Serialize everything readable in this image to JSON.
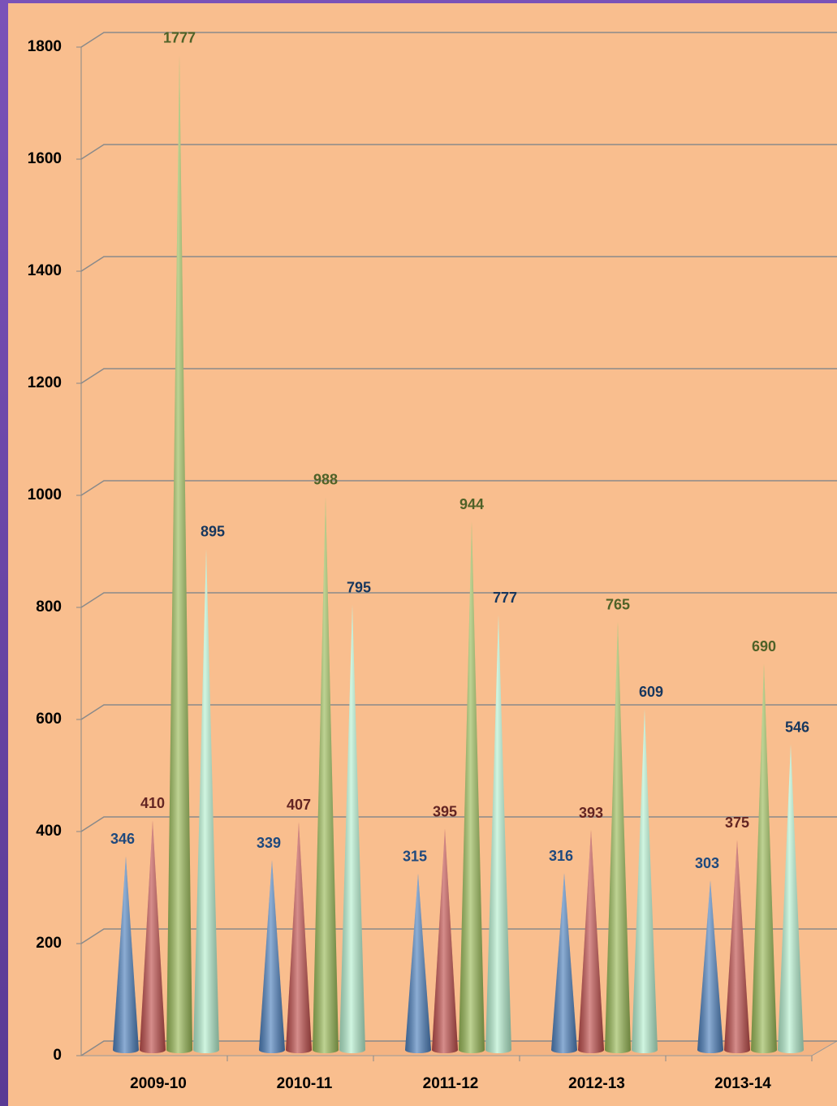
{
  "chart_data": {
    "type": "cone",
    "categories": [
      "2009-10",
      "2010-11",
      "2011-12",
      "2012-13",
      "2013-14"
    ],
    "series": [
      {
        "color": "#4f81bd",
        "label_color": "#1f497d",
        "values": [
          346,
          339,
          315,
          316,
          303
        ]
      },
      {
        "color": "#c0504d",
        "label_color": "#632523",
        "values": [
          410,
          407,
          395,
          393,
          375
        ]
      },
      {
        "color": "#9bbb59",
        "label_color": "#4f6228",
        "values": [
          1777,
          988,
          944,
          765,
          690
        ]
      },
      {
        "color": "#b7f0d0",
        "label_color": "#17375e",
        "values": [
          895,
          795,
          777,
          609,
          546
        ]
      }
    ],
    "ylim": [
      0,
      1800
    ],
    "yticks": [
      0,
      200,
      400,
      600,
      800,
      1000,
      1200,
      1400,
      1600,
      1800
    ],
    "grid": true
  }
}
